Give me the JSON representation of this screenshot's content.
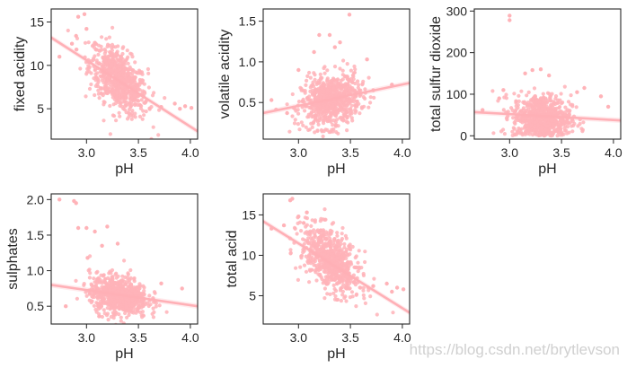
{
  "colors": {
    "point": "#ffb3b8",
    "line": "#ffb0b6",
    "axis": "#262626",
    "text": "#262626"
  },
  "watermark": "https://blog.csdn.net/brytlevson",
  "chart_data": [
    {
      "type": "scatter",
      "title": "",
      "xlabel": "pH",
      "ylabel": "fixed acidity",
      "xlim": [
        2.66,
        4.07
      ],
      "ylim": [
        1.5,
        16.5
      ],
      "xticks": [
        "3.0",
        "3.5",
        "4.0"
      ],
      "xtick_values": [
        3.0,
        3.5,
        4.0
      ],
      "yticks": [
        "5",
        "10",
        "15"
      ],
      "ytick_values": [
        5,
        10,
        15
      ],
      "fit_line": [
        [
          2.66,
          13.2
        ],
        [
          4.07,
          2.4
        ]
      ],
      "cluster": {
        "center": [
          3.31,
          8.3
        ],
        "spread": [
          0.14,
          1.7
        ],
        "slope": -7.7
      },
      "points": [
        [
          2.92,
          15.6
        ],
        [
          2.98,
          15.9
        ],
        [
          2.9,
          13.4
        ],
        [
          3.0,
          14.2
        ],
        [
          2.86,
          12.5
        ],
        [
          2.74,
          11.0
        ],
        [
          3.08,
          12.6
        ],
        [
          3.95,
          5.3
        ],
        [
          3.85,
          5.6
        ],
        [
          4.01,
          5.1
        ],
        [
          3.72,
          5.2
        ],
        [
          3.9,
          5.0
        ]
      ]
    },
    {
      "type": "scatter",
      "title": "",
      "xlabel": "pH",
      "ylabel": "volatile acidity",
      "xlim": [
        2.66,
        4.07
      ],
      "ylim": [
        0.05,
        1.65
      ],
      "xticks": [
        "3.0",
        "3.5",
        "4.0"
      ],
      "xtick_values": [
        3.0,
        3.5,
        4.0
      ],
      "yticks": [
        "0.5",
        "1.0",
        "1.5"
      ],
      "ytick_values": [
        0.5,
        1.0,
        1.5
      ],
      "fit_line": [
        [
          2.66,
          0.37
        ],
        [
          4.07,
          0.74
        ]
      ],
      "cluster": {
        "center": [
          3.31,
          0.52
        ],
        "spread": [
          0.14,
          0.16
        ],
        "slope": 0.25
      },
      "points": [
        [
          3.49,
          1.58
        ],
        [
          3.2,
          1.33
        ],
        [
          3.3,
          1.33
        ],
        [
          3.35,
          1.18
        ],
        [
          3.4,
          1.24
        ],
        [
          3.66,
          1.03
        ],
        [
          3.9,
          0.72
        ],
        [
          3.72,
          0.65
        ],
        [
          2.74,
          0.53
        ],
        [
          2.89,
          0.37
        ],
        [
          3.0,
          0.9
        ],
        [
          3.15,
          1.12
        ]
      ]
    },
    {
      "type": "scatter",
      "title": "",
      "xlabel": "pH",
      "ylabel": "total sulfur dioxide",
      "xlim": [
        2.66,
        4.07
      ],
      "ylim": [
        -8,
        305
      ],
      "xticks": [
        "3.0",
        "3.5",
        "4.0"
      ],
      "xtick_values": [
        3.0,
        3.5,
        4.0
      ],
      "yticks": [
        "0",
        "100",
        "200",
        "300"
      ],
      "ytick_values": [
        0,
        100,
        200,
        300
      ],
      "fit_line": [
        [
          2.66,
          57
        ],
        [
          4.07,
          37
        ]
      ],
      "cluster": {
        "center": [
          3.31,
          44
        ],
        "spread": [
          0.14,
          28
        ],
        "slope": -10
      },
      "points": [
        [
          3.0,
          289
        ],
        [
          3.0,
          278
        ],
        [
          3.22,
          158
        ],
        [
          3.3,
          160
        ],
        [
          3.15,
          150
        ],
        [
          3.38,
          145
        ],
        [
          2.94,
          110
        ],
        [
          2.9,
          90
        ],
        [
          2.74,
          62
        ],
        [
          3.88,
          95
        ],
        [
          3.95,
          70
        ],
        [
          3.65,
          105
        ],
        [
          3.72,
          115
        ]
      ]
    },
    {
      "type": "scatter",
      "title": "",
      "xlabel": "pH",
      "ylabel": "sulphates",
      "xlim": [
        2.66,
        4.07
      ],
      "ylim": [
        0.25,
        2.08
      ],
      "xticks": [
        "3.0",
        "3.5",
        "4.0"
      ],
      "xtick_values": [
        3.0,
        3.5,
        4.0
      ],
      "yticks": [
        "0.5",
        "1.0",
        "1.5",
        "2.0"
      ],
      "ytick_values": [
        0.5,
        1.0,
        1.5,
        2.0
      ],
      "fit_line": [
        [
          2.66,
          0.8
        ],
        [
          4.07,
          0.5
        ]
      ],
      "cluster": {
        "center": [
          3.31,
          0.65
        ],
        "spread": [
          0.14,
          0.14
        ],
        "slope": -0.2
      },
      "points": [
        [
          2.74,
          2.0
        ],
        [
          2.88,
          1.98
        ],
        [
          2.9,
          1.95
        ],
        [
          2.92,
          1.6
        ],
        [
          3.0,
          1.6
        ],
        [
          3.08,
          1.55
        ],
        [
          3.15,
          1.35
        ],
        [
          3.01,
          1.18
        ],
        [
          3.2,
          1.62
        ],
        [
          3.3,
          1.38
        ],
        [
          3.92,
          0.75
        ],
        [
          3.72,
          0.82
        ],
        [
          2.8,
          0.5
        ]
      ]
    },
    {
      "type": "scatter",
      "title": "",
      "xlabel": "pH",
      "ylabel": "total acid",
      "xlim": [
        2.66,
        4.07
      ],
      "ylim": [
        1.5,
        17.6
      ],
      "xticks": [
        "3.0",
        "3.5",
        "4.0"
      ],
      "xtick_values": [
        3.0,
        3.5,
        4.0
      ],
      "yticks": [
        "5",
        "10",
        "15"
      ],
      "ytick_values": [
        5,
        10,
        15
      ],
      "fit_line": [
        [
          2.66,
          14.2
        ],
        [
          4.07,
          2.9
        ]
      ],
      "cluster": {
        "center": [
          3.31,
          9.3
        ],
        "spread": [
          0.14,
          1.8
        ],
        "slope": -7.9
      },
      "points": [
        [
          2.92,
          16.8
        ],
        [
          2.94,
          17.0
        ],
        [
          3.08,
          15.3
        ],
        [
          3.0,
          14.8
        ],
        [
          2.86,
          13.7
        ],
        [
          2.74,
          13.3
        ],
        [
          3.05,
          14.0
        ],
        [
          3.95,
          6.0
        ],
        [
          3.85,
          6.5
        ],
        [
          4.01,
          5.8
        ],
        [
          3.72,
          6.2
        ],
        [
          3.9,
          5.5
        ]
      ]
    }
  ]
}
